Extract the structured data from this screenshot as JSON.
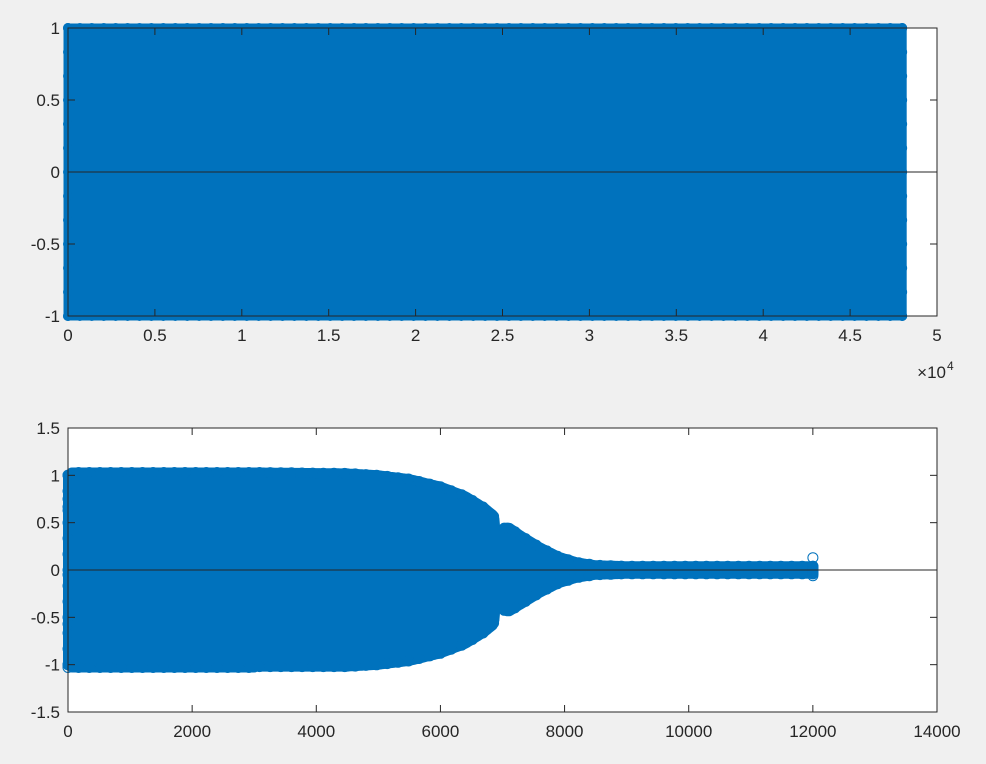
{
  "chart_data": [
    {
      "type": "scatter",
      "marker": "filled circle",
      "color": "#0072bd",
      "xlim": [
        0,
        50000
      ],
      "ylim": [
        -1,
        1
      ],
      "x_ticks": [
        0,
        5000,
        10000,
        15000,
        20000,
        25000,
        30000,
        35000,
        40000,
        45000,
        50000
      ],
      "x_tick_labels": [
        "0",
        "0.5",
        "1",
        "1.5",
        "2",
        "2.5",
        "3",
        "3.5",
        "4",
        "4.5",
        "5"
      ],
      "x_exponent": {
        "base": "×10",
        "power": "4"
      },
      "y_ticks": [
        -1,
        -0.5,
        0,
        0.5,
        1
      ],
      "y_tick_labels": [
        "-1",
        "-0.5",
        "0",
        "0.5",
        "1"
      ],
      "zero_line": true,
      "grid": false,
      "x_range_of_data": [
        0,
        48000
      ],
      "envelope": [
        {
          "x": 0,
          "y_min": -1,
          "y_max": 1
        },
        {
          "x": 48000,
          "y_min": -1,
          "y_max": 1
        }
      ]
    },
    {
      "type": "scatter",
      "marker": "open circle",
      "color": "#0072bd",
      "xlim": [
        0,
        14000
      ],
      "ylim": [
        -1.5,
        1.5
      ],
      "x_ticks": [
        0,
        2000,
        4000,
        6000,
        8000,
        10000,
        12000,
        14000
      ],
      "x_tick_labels": [
        "0",
        "2000",
        "4000",
        "6000",
        "8000",
        "10000",
        "12000",
        "14000"
      ],
      "y_ticks": [
        -1.5,
        -1,
        -0.5,
        0,
        0.5,
        1,
        1.5
      ],
      "y_tick_labels": [
        "-1.5",
        "-1",
        "-0.5",
        "0",
        "0.5",
        "1",
        "1.5"
      ],
      "zero_line": true,
      "grid": false,
      "envelope": [
        {
          "x": 0,
          "y_min": -1.0,
          "y_max": 1.0
        },
        {
          "x": 60,
          "y_min": -1.03,
          "y_max": 1.03
        },
        {
          "x": 3000,
          "y_min": -1.03,
          "y_max": 1.03
        },
        {
          "x": 3040,
          "y_min": -0.98,
          "y_max": 1.03
        },
        {
          "x": 3080,
          "y_min": -1.02,
          "y_max": 1.03
        },
        {
          "x": 4500,
          "y_min": -1.02,
          "y_max": 1.02
        },
        {
          "x": 5000,
          "y_min": -1.0,
          "y_max": 1.0
        },
        {
          "x": 5500,
          "y_min": -0.96,
          "y_max": 0.96
        },
        {
          "x": 6000,
          "y_min": -0.88,
          "y_max": 0.88
        },
        {
          "x": 6400,
          "y_min": -0.78,
          "y_max": 0.78
        },
        {
          "x": 6700,
          "y_min": -0.66,
          "y_max": 0.66
        },
        {
          "x": 6850,
          "y_min": -0.58,
          "y_max": 0.58
        },
        {
          "x": 6880,
          "y_min": -0.5,
          "y_max": 0.52
        },
        {
          "x": 6920,
          "y_min": -0.1,
          "y_max": 0.1
        },
        {
          "x": 6960,
          "y_min": -0.25,
          "y_max": 0.25
        },
        {
          "x": 7000,
          "y_min": -0.42,
          "y_max": 0.44
        },
        {
          "x": 7100,
          "y_min": -0.44,
          "y_max": 0.45
        },
        {
          "x": 7300,
          "y_min": -0.36,
          "y_max": 0.36
        },
        {
          "x": 7600,
          "y_min": -0.24,
          "y_max": 0.24
        },
        {
          "x": 7900,
          "y_min": -0.14,
          "y_max": 0.14
        },
        {
          "x": 8200,
          "y_min": -0.08,
          "y_max": 0.08
        },
        {
          "x": 8500,
          "y_min": -0.05,
          "y_max": 0.05
        },
        {
          "x": 9000,
          "y_min": -0.04,
          "y_max": 0.04
        },
        {
          "x": 12000,
          "y_min": -0.04,
          "y_max": 0.04
        }
      ],
      "outliers": [
        {
          "x": 0,
          "y": 0.75
        },
        {
          "x": 0,
          "y": 0.63
        },
        {
          "x": 0,
          "y": -0.57
        },
        {
          "x": 0,
          "y": -1.03
        },
        {
          "x": 0,
          "y": -0.05
        },
        {
          "x": 12000,
          "y": 0.13
        },
        {
          "x": 12000,
          "y": -0.06
        }
      ]
    }
  ]
}
